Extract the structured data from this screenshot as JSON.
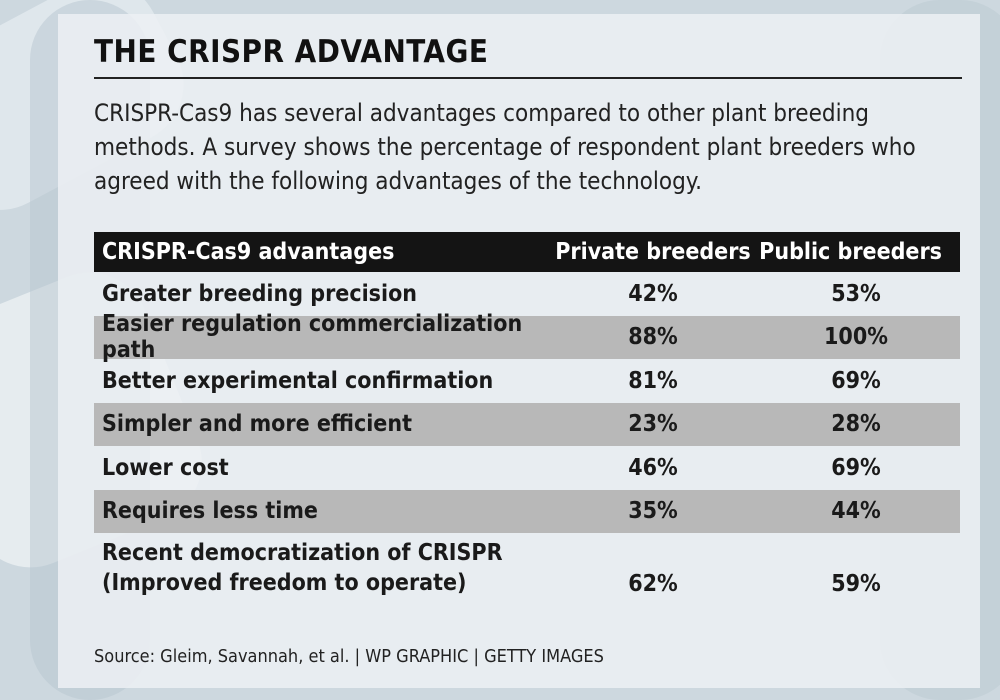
{
  "title": "THE CRISPR ADVANTAGE",
  "intro": "CRISPR-Cas9 has several advantages compared to other plant breeding methods. A survey shows the percentage of respondent plant breeders who agreed with the following advantages of the technology.",
  "headers": [
    "CRISPR-Cas9 advantages",
    "Private breeders",
    "Public breeders"
  ],
  "rows": [
    {
      "advantage": [
        "Greater breeding precision"
      ],
      "private": "42%",
      "public": "53%"
    },
    {
      "advantage": [
        "Easier regulation commercialization path"
      ],
      "private": "88%",
      "public": "100%"
    },
    {
      "advantage": [
        "Better experimental confirmation"
      ],
      "private": "81%",
      "public": "69%"
    },
    {
      "advantage": [
        "Simpler and more efficient"
      ],
      "private": "23%",
      "public": "28%"
    },
    {
      "advantage": [
        "Lower cost"
      ],
      "private": "46%",
      "public": "69%"
    },
    {
      "advantage": [
        "Requires less time"
      ],
      "private": "35%",
      "public": "44%"
    },
    {
      "advantage": [
        "Recent democratization of CRISPR",
        "(Improved freedom to operate)"
      ],
      "private": "62%",
      "public": "59%"
    }
  ],
  "source": "Source: Gleim, Savannah, et al. | WP GRAPHIC | GETTY IMAGES",
  "chart_data": {
    "type": "table",
    "title": "THE CRISPR ADVANTAGE",
    "columns": [
      "CRISPR-Cas9 advantages",
      "Private breeders",
      "Public breeders"
    ],
    "categories": [
      "Greater breeding precision",
      "Easier regulation commercialization path",
      "Better experimental confirmation",
      "Simpler and more efficient",
      "Lower cost",
      "Requires less time",
      "Recent democratization of CRISPR (Improved freedom to operate)"
    ],
    "series": [
      {
        "name": "Private breeders",
        "values": [
          42,
          88,
          81,
          23,
          46,
          35,
          62
        ]
      },
      {
        "name": "Public breeders",
        "values": [
          53,
          100,
          69,
          28,
          69,
          44,
          59
        ]
      }
    ]
  }
}
